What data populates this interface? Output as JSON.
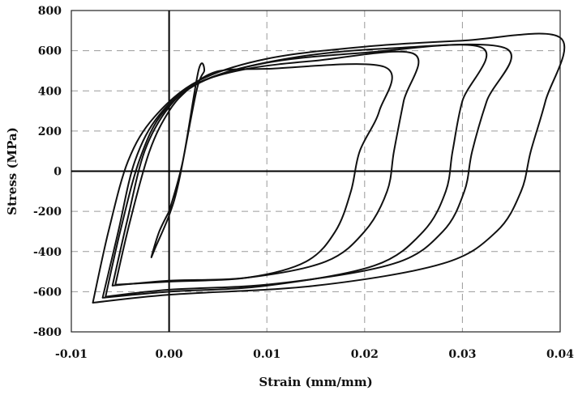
{
  "chart_data": {
    "type": "line",
    "xlabel": "Strain (mm/mm)",
    "ylabel": "Stress (MPa)",
    "xlim": [
      -0.01,
      0.04
    ],
    "ylim": [
      -800,
      800
    ],
    "x_ticks": [
      -0.01,
      0.0,
      0.01,
      0.02,
      0.03,
      0.04
    ],
    "x_tick_labels": [
      "-0.01",
      "0.00",
      "0.01",
      "0.02",
      "0.03",
      "0.04"
    ],
    "y_ticks": [
      -800,
      -600,
      -400,
      -200,
      0,
      200,
      400,
      600,
      800
    ],
    "y_tick_labels": [
      "-800",
      "-600",
      "-400",
      "-200",
      "0",
      "200",
      "400",
      "600",
      "800"
    ],
    "grid": true,
    "series": [
      {
        "values": [
          [
            0.0,
            -200
          ],
          [
            0.0014,
            50
          ],
          [
            0.003,
            500
          ],
          [
            0.0036,
            500
          ],
          [
            0.0028,
            400
          ],
          [
            0.001,
            -50
          ],
          [
            0.0,
            -220
          ],
          [
            -0.0014,
            -380
          ],
          [
            -0.0018,
            -425
          ],
          [
            -0.001,
            -300
          ],
          [
            0.0,
            -200
          ]
        ]
      },
      {
        "values": [
          [
            -0.0055,
            -565
          ],
          [
            -0.004,
            -250
          ],
          [
            -0.002,
            100
          ],
          [
            0.0,
            300
          ],
          [
            0.002,
            410
          ],
          [
            0.004,
            480
          ],
          [
            0.006,
            505
          ],
          [
            0.01,
            510
          ],
          [
            0.022,
            520
          ],
          [
            0.0215,
            300
          ],
          [
            0.0195,
            100
          ],
          [
            0.0186,
            -100
          ],
          [
            0.017,
            -300
          ],
          [
            0.014,
            -450
          ],
          [
            0.008,
            -530
          ],
          [
            0.0,
            -550
          ],
          [
            -0.0055,
            -565
          ]
        ]
      },
      {
        "values": [
          [
            -0.0058,
            -570
          ],
          [
            -0.0043,
            -250
          ],
          [
            -0.0025,
            100
          ],
          [
            0.0,
            320
          ],
          [
            0.003,
            440
          ],
          [
            0.008,
            510
          ],
          [
            0.015,
            550
          ],
          [
            0.025,
            585
          ],
          [
            0.024,
            350
          ],
          [
            0.023,
            100
          ],
          [
            0.0223,
            -100
          ],
          [
            0.02,
            -300
          ],
          [
            0.016,
            -450
          ],
          [
            0.008,
            -530
          ],
          [
            0.0,
            -545
          ],
          [
            -0.0058,
            -570
          ]
        ]
      },
      {
        "values": [
          [
            -0.0068,
            -630
          ],
          [
            -0.0052,
            -300
          ],
          [
            -0.0035,
            50
          ],
          [
            -0.001,
            280
          ],
          [
            0.003,
            440
          ],
          [
            0.01,
            540
          ],
          [
            0.02,
            590
          ],
          [
            0.032,
            615
          ],
          [
            0.03,
            350
          ],
          [
            0.029,
            100
          ],
          [
            0.0283,
            -100
          ],
          [
            0.026,
            -300
          ],
          [
            0.021,
            -470
          ],
          [
            0.01,
            -570
          ],
          [
            0.0,
            -600
          ],
          [
            -0.0068,
            -630
          ]
        ]
      },
      {
        "values": [
          [
            -0.0065,
            -625
          ],
          [
            -0.005,
            -300
          ],
          [
            -0.003,
            60
          ],
          [
            -0.0005,
            300
          ],
          [
            0.004,
            460
          ],
          [
            0.012,
            560
          ],
          [
            0.022,
            610
          ],
          [
            0.0345,
            610
          ],
          [
            0.0325,
            350
          ],
          [
            0.031,
            100
          ],
          [
            0.0302,
            -100
          ],
          [
            0.028,
            -300
          ],
          [
            0.023,
            -460
          ],
          [
            0.011,
            -560
          ],
          [
            0.0,
            -590
          ],
          [
            -0.0065,
            -625
          ]
        ]
      },
      {
        "values": [
          [
            -0.0078,
            -655
          ],
          [
            -0.0062,
            -300
          ],
          [
            -0.0042,
            50
          ],
          [
            -0.0015,
            270
          ],
          [
            0.003,
            450
          ],
          [
            0.01,
            560
          ],
          [
            0.02,
            620
          ],
          [
            0.03,
            650
          ],
          [
            0.04,
            665
          ],
          [
            0.0385,
            350
          ],
          [
            0.037,
            100
          ],
          [
            0.036,
            -100
          ],
          [
            0.0335,
            -300
          ],
          [
            0.028,
            -460
          ],
          [
            0.015,
            -570
          ],
          [
            0.0,
            -615
          ],
          [
            -0.0078,
            -655
          ]
        ]
      }
    ]
  }
}
